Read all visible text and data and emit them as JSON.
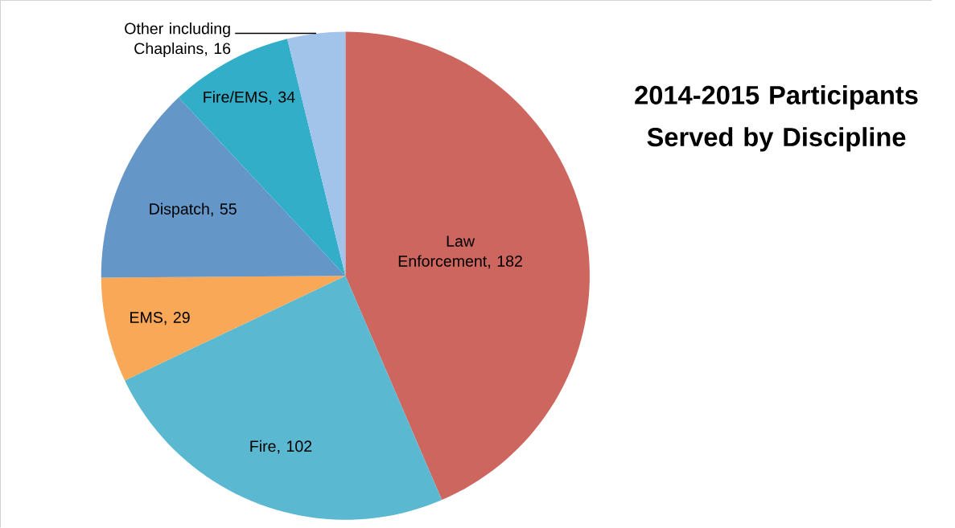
{
  "chart_data": {
    "type": "pie",
    "title": "2014-2015 Participants Served by Discipline",
    "categories": [
      "Law Enforcement",
      "Fire",
      "EMS",
      "Dispatch",
      "Fire/EMS",
      "Other including Chaplains"
    ],
    "values": [
      182,
      102,
      29,
      55,
      34,
      16
    ],
    "colors": [
      "#cd665f",
      "#5bb8d1",
      "#f9a857",
      "#6496c8",
      "#33aec8",
      "#a2c3ea"
    ],
    "value_labels": [
      ", 182",
      ", 102",
      ", 29",
      ", 55",
      ", 34",
      ", 16"
    ]
  }
}
